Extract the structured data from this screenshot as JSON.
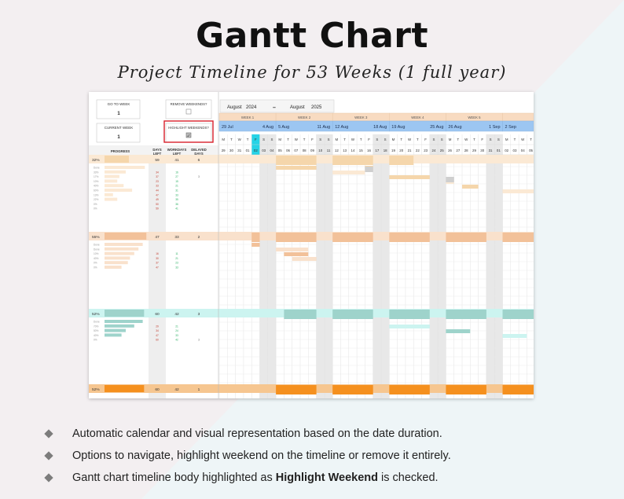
{
  "title": "Gantt Chart",
  "subtitle": "Project Timeline for 53 Weeks (1 full year)",
  "controls": {
    "go_to_week_label": "GO TO WEEK",
    "go_to_week_value": "1",
    "current_week_label": "CURRENT WEEK",
    "current_week_value": "1",
    "remove_weekends_label": "REMOVE WEEKENDS?",
    "remove_weekends_checked": false,
    "highlight_weekend_label": "HIGHLIGHT WEEKENDS?",
    "highlight_weekend_checked": true
  },
  "timeline": {
    "start_month": "August",
    "start_year": "2024",
    "separator": "–",
    "end_month": "August",
    "end_year": "2025",
    "weeks": [
      {
        "label": "WEEK 1",
        "start": "29 Jul",
        "end": "4 Aug"
      },
      {
        "label": "WEEK 2",
        "start": "5 Aug",
        "end": "11 Aug"
      },
      {
        "label": "WEEK 3",
        "start": "12 Aug",
        "end": "18 Aug"
      },
      {
        "label": "WEEK 4",
        "start": "19 Aug",
        "end": "25 Aug"
      },
      {
        "label": "WEEK 5",
        "start": "26 Aug",
        "end": "1 Sep"
      },
      {
        "label": "",
        "start": "2 Sep",
        "end": ""
      }
    ],
    "day_letters": [
      "M",
      "T",
      "W",
      "T",
      "F",
      "S",
      "S"
    ],
    "days": [
      "29",
      "30",
      "31",
      "01",
      "02",
      "03",
      "04",
      "05",
      "06",
      "07",
      "08",
      "09",
      "10",
      "11",
      "12",
      "13",
      "14",
      "15",
      "16",
      "17",
      "18",
      "19",
      "20",
      "21",
      "22",
      "23",
      "24",
      "25",
      "26",
      "27",
      "28",
      "29",
      "30",
      "31",
      "01",
      "02",
      "03",
      "04",
      "05"
    ],
    "today_index": 4
  },
  "columns": {
    "progress": "PROGRESS",
    "days_left": "DAYS LEFT",
    "workdays_left": "WORKDAYS LEFT",
    "delayed_days": "DELAYED DAYS"
  },
  "colors": {
    "sec1": "#f5d6ab",
    "sec1_light": "#fbe9d4",
    "sec2": "#f2c199",
    "sec2_light": "#f9e1cc",
    "sec3": "#9ed3cb",
    "sec3_light": "#ccf4f0",
    "sec4": "#f5901e",
    "sec4_light": "#f6c690",
    "weekend": "#e8e8e8",
    "today": "#26d3e6",
    "week_header": "#f8dbc1",
    "date_header": "#9cc6f2",
    "highlight_box": "#d9202a"
  },
  "sections": [
    {
      "summary": {
        "pct": "32%",
        "progress": 0.32,
        "days_left": "59",
        "workdays_left": "41",
        "delayed": "6"
      },
      "tasks": [
        {
          "progress": 0.95,
          "pct": "Done",
          "d": "",
          "w": "",
          "x": ""
        },
        {
          "progress": 0.5,
          "pct": "33%",
          "d": "34",
          "w": "16",
          "x": ""
        },
        {
          "progress": 0.35,
          "pct": "17%",
          "d": "37",
          "w": "27",
          "x": "3"
        },
        {
          "progress": 0.3,
          "pct": "10%",
          "d": "23",
          "w": "15",
          "x": ""
        },
        {
          "progress": 0.45,
          "pct": "40%",
          "d": "33",
          "w": "21",
          "x": ""
        },
        {
          "progress": 0.65,
          "pct": "60%",
          "d": "44",
          "w": "31",
          "x": ""
        },
        {
          "progress": 0.2,
          "pct": "13%",
          "d": "47",
          "w": "33",
          "x": ""
        },
        {
          "progress": 0.3,
          "pct": "22%",
          "d": "49",
          "w": "35",
          "x": ""
        },
        {
          "progress": 0.0,
          "pct": "0%",
          "d": "50",
          "w": "36",
          "x": ""
        },
        {
          "progress": 0.0,
          "pct": "0%",
          "d": "59",
          "w": "41",
          "x": ""
        }
      ]
    },
    {
      "summary": {
        "pct": "55%",
        "progress": 0.55,
        "days_left": "47",
        "workdays_left": "33",
        "delayed": "2"
      },
      "tasks": [
        {
          "progress": 0.9,
          "pct": "Done",
          "d": "",
          "w": "",
          "x": ""
        },
        {
          "progress": 0.8,
          "pct": "Done",
          "d": "",
          "w": "",
          "x": ""
        },
        {
          "progress": 0.7,
          "pct": "10%",
          "d": "16",
          "w": "11",
          "x": ""
        },
        {
          "progress": 0.6,
          "pct": "40%",
          "d": "30",
          "w": "21",
          "x": ""
        },
        {
          "progress": 0.55,
          "pct": "0%",
          "d": "37",
          "w": "23",
          "x": ""
        },
        {
          "progress": 0.4,
          "pct": "0%",
          "d": "47",
          "w": "33",
          "x": ""
        }
      ]
    },
    {
      "summary": {
        "pct": "52%",
        "progress": 0.52,
        "days_left": "60",
        "workdays_left": "42",
        "delayed": "3"
      },
      "tasks": [
        {
          "progress": 0.9,
          "pct": "Done",
          "d": "",
          "w": "",
          "x": ""
        },
        {
          "progress": 0.7,
          "pct": "70%",
          "d": "29",
          "w": "21",
          "x": ""
        },
        {
          "progress": 0.5,
          "pct": "50%",
          "d": "34",
          "w": "24",
          "x": ""
        },
        {
          "progress": 0.4,
          "pct": "40%",
          "d": "47",
          "w": "33",
          "x": ""
        },
        {
          "progress": 0.0,
          "pct": "0%",
          "d": "60",
          "w": "42",
          "x": "3"
        }
      ]
    },
    {
      "summary": {
        "pct": "52%",
        "progress": 0.52,
        "days_left": "60",
        "workdays_left": "42",
        "delayed": "1"
      },
      "tasks": []
    }
  ],
  "bullets": [
    {
      "text": "Automatic calendar and visual representation based on the date duration.",
      "bold": "",
      "after": ""
    },
    {
      "text": "Options to navigate, highlight weekend on the timeline or remove it entirely.",
      "bold": "",
      "after": ""
    },
    {
      "text": "Gantt chart timeline body highlighted as ",
      "bold": "Highlight Weekend",
      "after": " is checked."
    }
  ]
}
